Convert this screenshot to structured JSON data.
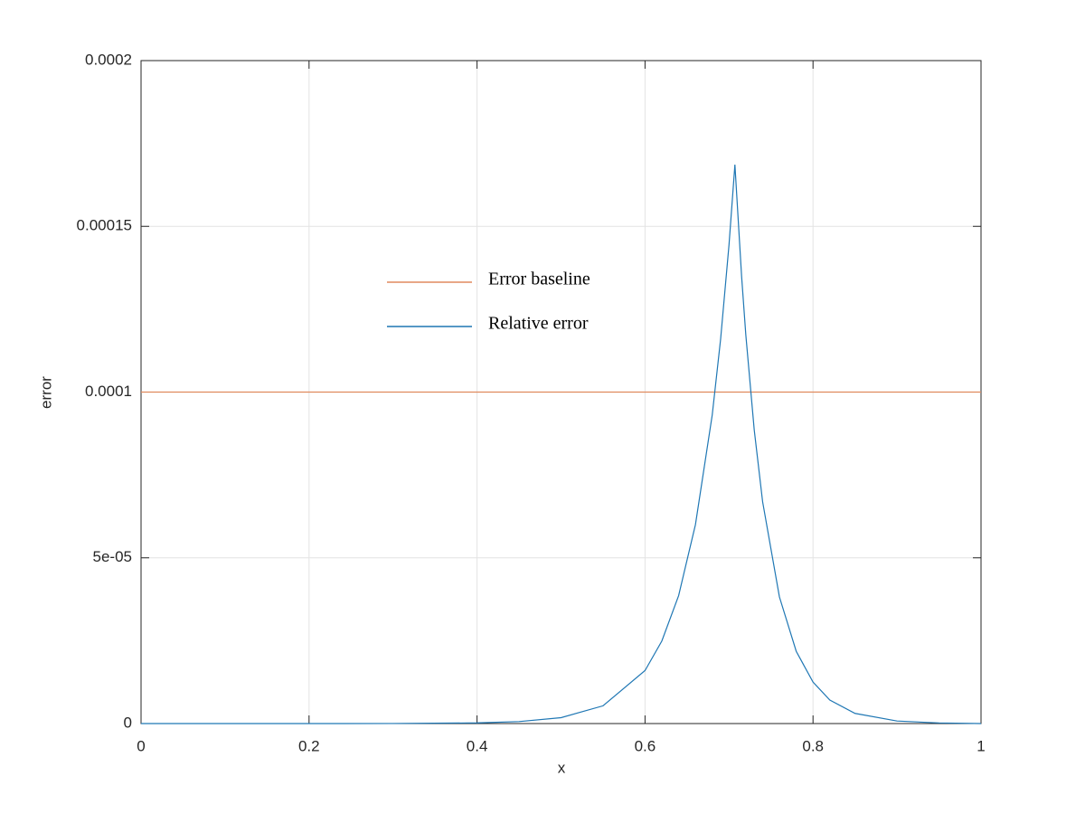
{
  "chart_data": {
    "type": "line",
    "xlabel": "x",
    "ylabel": "error",
    "xlim": [
      0,
      1
    ],
    "ylim": [
      0,
      0.0002
    ],
    "xticks": [
      0,
      0.2,
      0.4,
      0.6,
      0.8,
      1
    ],
    "yticks": [
      0,
      {
        "value": 5e-05,
        "label": "5e-05"
      },
      0.0001,
      0.00015,
      0.0002
    ],
    "grid": true,
    "series": [
      {
        "name": "Error baseline",
        "color": "#e08a5e",
        "x": [
          0,
          1
        ],
        "values": [
          0.0001,
          0.0001
        ]
      },
      {
        "name": "Relative error",
        "color": "#1f77b4",
        "x": [
          0,
          0.1,
          0.2,
          0.3,
          0.4,
          0.45,
          0.5,
          0.55,
          0.6,
          0.62,
          0.64,
          0.66,
          0.68,
          0.69,
          0.7,
          0.707,
          0.715,
          0.72,
          0.73,
          0.74,
          0.76,
          0.78,
          0.8,
          0.82,
          0.85,
          0.9,
          0.95,
          1
        ],
        "values": [
          0,
          0,
          0,
          2.2e-08,
          1.97e-07,
          5.9e-07,
          1.78e-06,
          5.35e-06,
          1.6e-05,
          2.49e-05,
          3.86e-05,
          6e-05,
          9.31e-05,
          0.000116,
          0.0001445,
          0.0001686,
          0.0001348,
          0.0001172,
          8.86e-05,
          6.69e-05,
          3.82e-05,
          2.18e-05,
          1.25e-05,
          7.1e-06,
          3.07e-06,
          7.6e-07,
          1.9e-07,
          0
        ]
      }
    ]
  }
}
